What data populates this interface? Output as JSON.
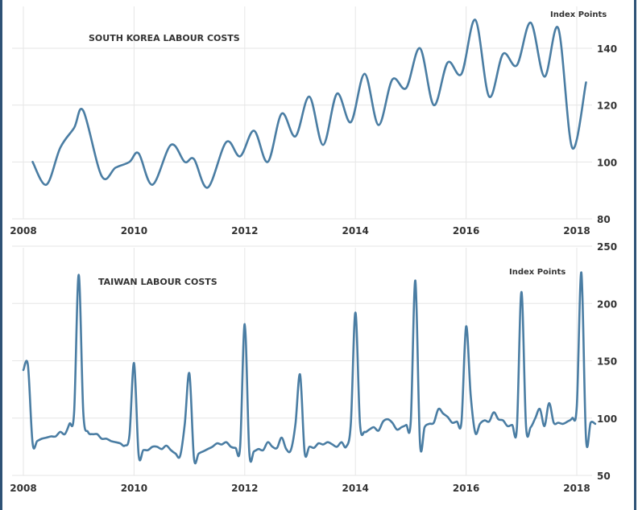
{
  "colors": {
    "line": "#4a7da3",
    "frame": "#2e5276"
  },
  "chart_data": [
    {
      "type": "line",
      "title": "SOUTH KOREA LABOUR COSTS",
      "ylabel": "Index Points",
      "xlim": [
        "2008-01",
        "2018-06"
      ],
      "ylim": [
        80,
        150
      ],
      "x_ticks": [
        "2008",
        "2010",
        "2012",
        "2014",
        "2016",
        "2018"
      ],
      "y_ticks": [
        80,
        100,
        120,
        140
      ],
      "grid": true,
      "series": [
        {
          "x": [
            "2008-03",
            "2008-06",
            "2008-09",
            "2008-12",
            "2009-02",
            "2009-06",
            "2009-09",
            "2009-12",
            "2010-02",
            "2010-05",
            "2010-09",
            "2010-12",
            "2011-02",
            "2011-05",
            "2011-09",
            "2011-12",
            "2012-03",
            "2012-06",
            "2012-09",
            "2012-12",
            "2013-03",
            "2013-06",
            "2013-09",
            "2013-12",
            "2014-03",
            "2014-06",
            "2014-09",
            "2014-12",
            "2015-03",
            "2015-06",
            "2015-09",
            "2015-12",
            "2016-03",
            "2016-06",
            "2016-09",
            "2016-12",
            "2017-03",
            "2017-06",
            "2017-09",
            "2017-12",
            "2018-03"
          ],
          "values": [
            100,
            92,
            105,
            112,
            118,
            95,
            98,
            100,
            103,
            92,
            106,
            100,
            101,
            91,
            107,
            102,
            111,
            100,
            117,
            109,
            123,
            106,
            124,
            114,
            131,
            113,
            129,
            126,
            140,
            120,
            135,
            131,
            150,
            123,
            138,
            134,
            149,
            130,
            147,
            105,
            128
          ]
        }
      ]
    },
    {
      "type": "line",
      "title": "TAIWAN LABOUR COSTS",
      "ylabel": "Index Points",
      "xlim": [
        "2008-01",
        "2018-06"
      ],
      "ylim": [
        50,
        250
      ],
      "x_ticks": [
        "2008",
        "2010",
        "2012",
        "2014",
        "2016",
        "2018"
      ],
      "y_ticks": [
        50,
        100,
        150,
        200,
        250
      ],
      "grid": true,
      "series": [
        {
          "start": "2008-01",
          "frequency": "monthly",
          "values": [
            142,
            146,
            78,
            80,
            82,
            83,
            84,
            84,
            88,
            86,
            95,
            105,
            225,
            105,
            88,
            86,
            86,
            82,
            82,
            80,
            79,
            78,
            76,
            85,
            148,
            68,
            72,
            72,
            75,
            75,
            73,
            76,
            72,
            69,
            67,
            95,
            139,
            65,
            69,
            71,
            73,
            75,
            78,
            77,
            79,
            75,
            74,
            75,
            182,
            70,
            71,
            73,
            72,
            79,
            75,
            74,
            83,
            73,
            72,
            95,
            138,
            70,
            75,
            74,
            78,
            77,
            79,
            77,
            75,
            79,
            75,
            95,
            192,
            95,
            88,
            90,
            92,
            89,
            97,
            99,
            96,
            90,
            92,
            94,
            97,
            220,
            78,
            92,
            95,
            96,
            108,
            104,
            101,
            96,
            97,
            97,
            180,
            120,
            87,
            95,
            98,
            97,
            105,
            99,
            98,
            93,
            94,
            91,
            210,
            93,
            92,
            100,
            108,
            93,
            113,
            96,
            96,
            95,
            97,
            100,
            110,
            227,
            82,
            96,
            95
          ]
        }
      ]
    }
  ]
}
